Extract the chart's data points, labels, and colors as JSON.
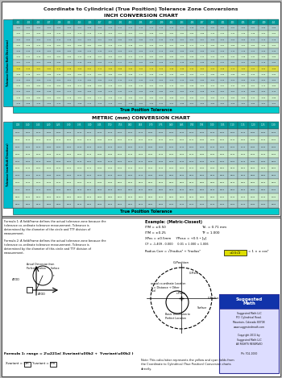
{
  "title": "Coordinate to Cylindrical (True Position) Tolerance Zone Conversions",
  "inch_chart_title": "INCH CONVERSION CHART",
  "metric_chart_title": "METRIC (mm) CONVERSION CHART",
  "inch_bottom_bar": "True Position Tolerance",
  "metric_bottom_bar": "True Position Tolerance",
  "bg_color": "#e8e8e8",
  "outer_bg": "#cccccc",
  "border_color": "#333333",
  "header_bg": "#00bbbb",
  "cell_cyan_light": "#aadddd",
  "cell_green_light": "#aaddaa",
  "cell_yellow": "#dddd00",
  "cell_white": "#ddeeee",
  "cell_dark_green": "#88aa88",
  "accent_cyan": "#00cccc",
  "side_bar_color": "#00bbcc",
  "row_colors": [
    "#aacccc",
    "#cceecc",
    "#aacccc",
    "#cceecc",
    "#aacccc",
    "#cceecc",
    "#aacccc",
    "#dddd44",
    "#cceecc",
    "#aacccc",
    "#cceecc",
    "#aacccc",
    "#cceecc",
    "#aacccc"
  ],
  "row_colors_m": [
    "#aacccc",
    "#cceecc",
    "#aacccc",
    "#cceecc",
    "#aacccc",
    "#cceecc",
    "#aacccc",
    "#cceecc",
    "#aacccc",
    "#cceecc",
    "#aacccc"
  ],
  "header_row_color": "#009999",
  "n_cols": 26,
  "n_rows_inch": 15,
  "n_rows_metric": 12,
  "formula_text1": "Formula 1: A field/frame defines the actual tolerance zone because the",
  "formula_text1b": "tolerance co-ordinate tolerance measurement. Tolerance is",
  "formula_text1c": "determined by the diameter of the circle and TTF division of",
  "formula_text1d": "measurement.",
  "formula_text2": "Formula 2: A field/frame defines the actual tolerance zone because the",
  "formula_text2b": "tolerance co-ordinate tolerance measurement. Tolerance is",
  "formula_text2c": "determined by the diameter of this circle and TTF division of",
  "formula_text2d": "measurement.",
  "formula_main": "Formula 1: range = 2\\u221a( Xvariant\\u00b2 +  Yvariant\\u00b2 )",
  "formula_sub1": "Xvariant = Xm",
  "formula_sub2": "Yvariant = Ym",
  "example_title": "Example: (Metric-Closest)",
  "example_lines": [
    "ITM = \\u00b10.50          Tol. = 0.71 mm",
    "ITM = \\u00b10.25          TF = 1.000",
    "XPos = \\u00b10.5mm      YPos\\u00b1 = +0.5 \\u2022 [y]",
    "CF = -1.409 - 0.000     0.01 \\u00d7 1.000 = 1.006",
    "",
    "Radius Corr = \\u221aXradius\\u00b2 + Yradius\\u00b2    = 0.5\\u221a2 = 1 \\u00d7 \\u00b1 cos\\u00b2",
    ""
  ],
  "note_text": "Note: This calculation represents the yellow and cyan fields from the Coordinate to Cylindrical (True Position) Conversion charts directly.",
  "company_name": "Suggested Math LLC",
  "company_addr": "P.O. Cylindrical Road,\nMountain, Colorado 80708\nwww.suggestedmath.com\nPage/Page: (XXXX)",
  "company_copy": "Copyright 2011 by\nSuggested Math LLC\nAll RIGHTS RESERVED",
  "company_ph": "Ph: 702-1000"
}
